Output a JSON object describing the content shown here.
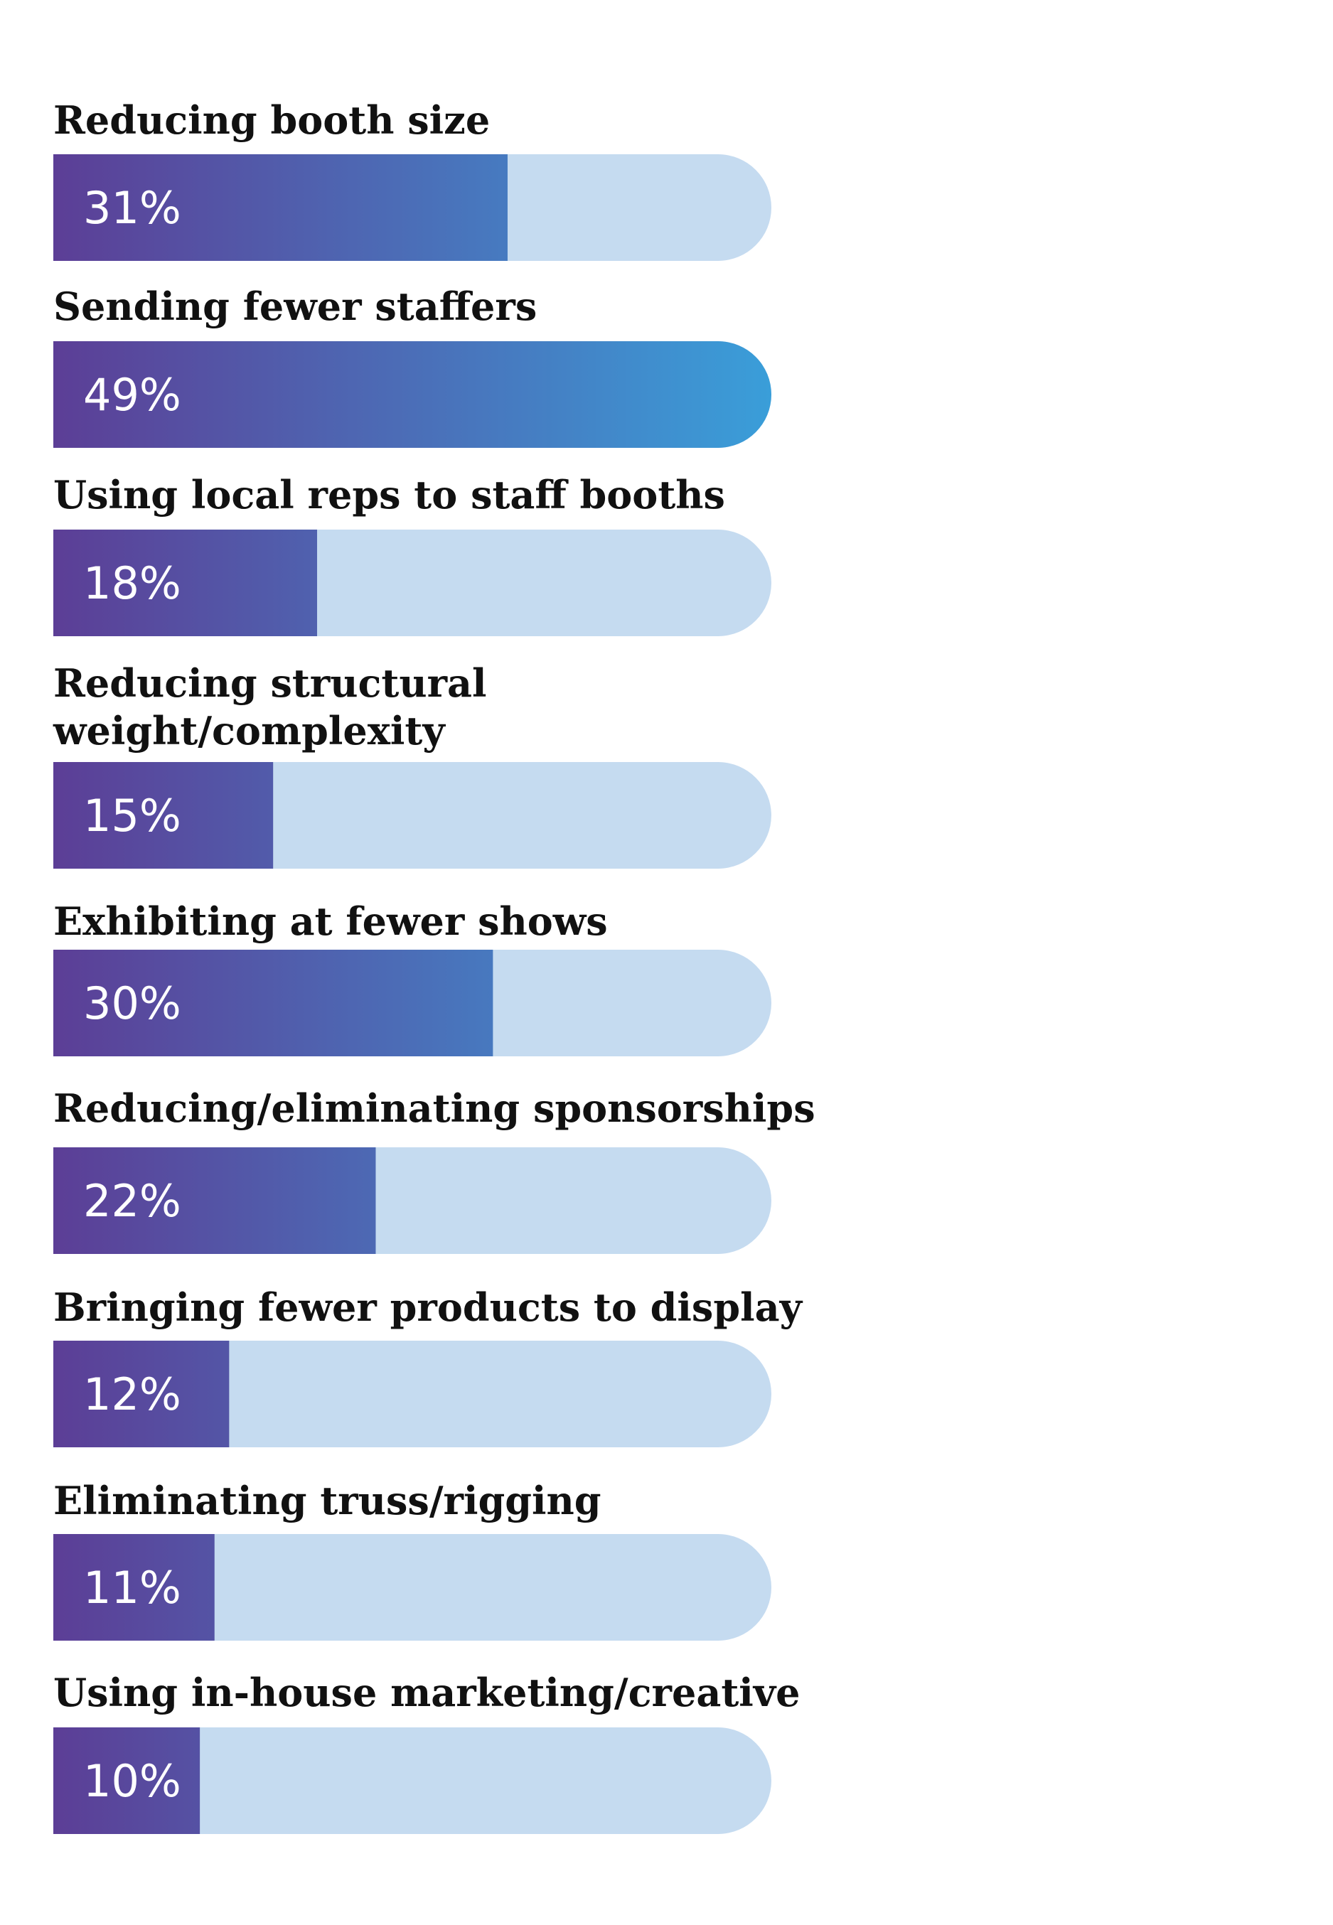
{
  "chart_data": {
    "type": "bar",
    "orientation": "horizontal",
    "categories": [
      [
        "Reducing booth size"
      ],
      [
        "Sending fewer staffers"
      ],
      [
        "Using local reps to staff booths"
      ],
      [
        "Reducing structural",
        "weight/complexity"
      ],
      [
        "Exhibiting at fewer shows"
      ],
      [
        "Reducing/eliminating sponsorships"
      ],
      [
        "Bringing fewer products to display"
      ],
      [
        "Eliminating truss/rigging"
      ],
      [
        "Using in-house marketing/creative"
      ]
    ],
    "values": [
      31,
      49,
      18,
      15,
      30,
      22,
      12,
      11,
      10
    ],
    "value_labels": [
      "31%",
      "49%",
      "18%",
      "15%",
      "30%",
      "22%",
      "12%",
      "11%",
      "10%"
    ],
    "xlim": [
      0,
      49
    ],
    "unit": "%",
    "title": "",
    "xlabel": "",
    "ylabel": "",
    "grid": false,
    "legend": "none"
  },
  "colors": {
    "track": "#c5dbf0",
    "gradient_start": "#5c3e96",
    "gradient_end": "#3a9ed9",
    "label_text": "#111111",
    "value_text": "#ffffff"
  }
}
